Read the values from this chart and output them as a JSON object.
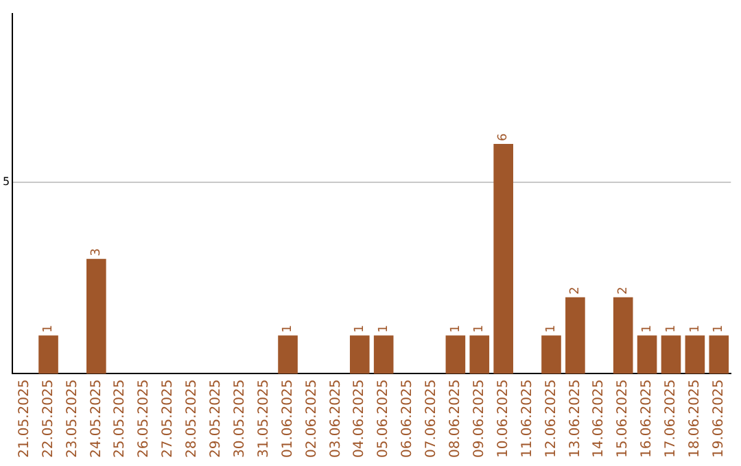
{
  "chart_data": {
    "type": "bar",
    "categories": [
      "21.05.2025",
      "22.05.2025",
      "23.05.2025",
      "24.05.2025",
      "25.05.2025",
      "26.05.2025",
      "27.05.2025",
      "28.05.2025",
      "29.05.2025",
      "30.05.2025",
      "31.05.2025",
      "01.06.2025",
      "02.06.2025",
      "03.06.2025",
      "04.06.2025",
      "05.06.2025",
      "06.06.2025",
      "07.06.2025",
      "08.06.2025",
      "09.06.2025",
      "10.06.2025",
      "11.06.2025",
      "12.06.2025",
      "13.06.2025",
      "14.06.2025",
      "15.06.2025",
      "16.06.2025",
      "17.06.2025",
      "18.06.2025",
      "19.06.2025"
    ],
    "values": [
      0,
      1,
      0,
      3,
      0,
      0,
      0,
      0,
      0,
      0,
      0,
      1,
      0,
      0,
      1,
      1,
      0,
      0,
      1,
      1,
      6,
      0,
      1,
      2,
      0,
      2,
      1,
      1,
      1,
      1
    ],
    "value_labels": [
      null,
      "1",
      null,
      "3",
      null,
      null,
      null,
      null,
      null,
      null,
      null,
      "1",
      null,
      null,
      "1",
      "1",
      null,
      null,
      "1",
      "1",
      "6",
      null,
      "1",
      "2",
      null,
      "2",
      "1",
      "1",
      "1",
      "1"
    ],
    "color": "#a0572a",
    "ylim": [
      0,
      9.4
    ],
    "yticks": [
      5
    ],
    "grid": "y",
    "legend": false
  }
}
